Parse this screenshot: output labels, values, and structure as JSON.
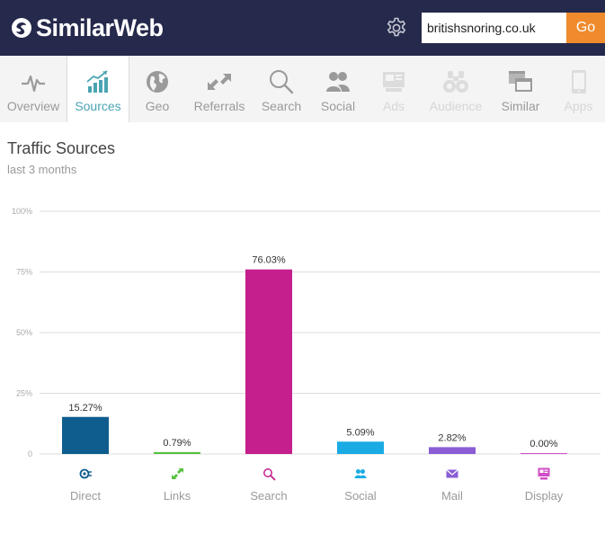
{
  "header": {
    "brand": "SimilarWeb",
    "search": {
      "value": "britishsnoring.co.uk",
      "placeholder": ""
    },
    "go_label": "Go"
  },
  "nav": {
    "items": [
      {
        "label": "Overview",
        "icon": "pulse-icon",
        "state": "normal"
      },
      {
        "label": "Sources",
        "icon": "growth-chart-icon",
        "state": "active"
      },
      {
        "label": "Geo",
        "icon": "globe-icon",
        "state": "normal"
      },
      {
        "label": "Referrals",
        "icon": "arrows-icon",
        "state": "normal"
      },
      {
        "label": "Search",
        "icon": "magnifier-icon",
        "state": "normal"
      },
      {
        "label": "Social",
        "icon": "people-icon",
        "state": "normal"
      },
      {
        "label": "Ads",
        "icon": "ads-icon",
        "state": "disabled"
      },
      {
        "label": "Audience",
        "icon": "binoculars-icon",
        "state": "disabled"
      },
      {
        "label": "Similar",
        "icon": "windows-icon",
        "state": "normal"
      },
      {
        "label": "Apps",
        "icon": "phone-icon",
        "state": "disabled"
      }
    ]
  },
  "section": {
    "title": "Traffic Sources",
    "subtitle": "last 3 months"
  },
  "chart_data": {
    "type": "bar",
    "title": "",
    "xlabel": "",
    "ylabel": "",
    "ylim": [
      0,
      100
    ],
    "yticks": [
      "0",
      "25%",
      "50%",
      "75%",
      "100%"
    ],
    "ytick_values": [
      0,
      25,
      50,
      75,
      100
    ],
    "grid": true,
    "categories": [
      "Direct",
      "Links",
      "Search",
      "Social",
      "Mail",
      "Display"
    ],
    "values": [
      15.27,
      0.79,
      76.03,
      5.09,
      2.82,
      0.0
    ],
    "value_labels": [
      "15.27%",
      "0.79%",
      "76.03%",
      "5.09%",
      "2.82%",
      "0.00%"
    ],
    "colors": [
      "#0f5d8e",
      "#56c13d",
      "#c41f8d",
      "#1aabe4",
      "#8a5dd4",
      "#d04fc6"
    ],
    "category_icons": [
      "direct-icon",
      "links-icon",
      "search-icon",
      "social-icon",
      "mail-icon",
      "display-icon"
    ]
  }
}
